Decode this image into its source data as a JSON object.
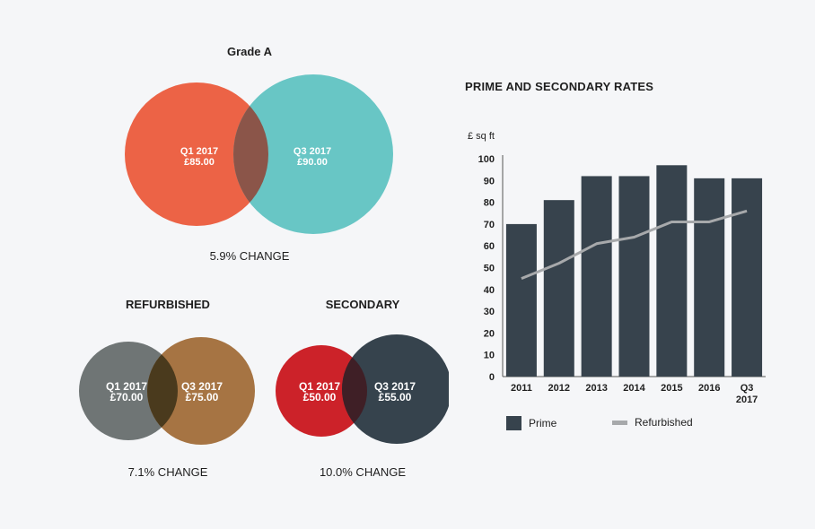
{
  "venns": [
    {
      "title": "Grade A",
      "left": {
        "period": "Q1 2017",
        "value": "£85.00",
        "color": "#ec6346"
      },
      "right": {
        "period": "Q3 2017",
        "value": "£90.00",
        "color": "#68c6c5"
      },
      "overlap_color": "#8b5549",
      "change": "5.9% CHANGE"
    },
    {
      "title": "REFURBISHED",
      "left": {
        "period": "Q1 2017",
        "value": "£70.00",
        "color": "#6f7575"
      },
      "right": {
        "period": "Q3 2017",
        "value": "£75.00",
        "color": "#a67443"
      },
      "overlap_color": "#4a3a1d",
      "change": "7.1% CHANGE"
    },
    {
      "title": "SECONDARY",
      "left": {
        "period": "Q1 2017",
        "value": "£50.00",
        "color": "#cc2229"
      },
      "right": {
        "period": "Q3 2017",
        "value": "£55.00",
        "color": "#36434d"
      },
      "overlap_color": "#3f1f26",
      "change": "10.0% CHANGE"
    }
  ],
  "chart_data": {
    "type": "bar",
    "title": "PRIME AND SECONDARY RATES",
    "ylabel": "£ sq ft",
    "ylim": [
      0,
      100
    ],
    "yticks": [
      0,
      10,
      20,
      30,
      40,
      50,
      60,
      70,
      80,
      90,
      100
    ],
    "categories": [
      "2011",
      "2012",
      "2013",
      "2014",
      "2015",
      "2016",
      "Q3 2017"
    ],
    "series": [
      {
        "name": "Prime",
        "type": "bar",
        "color": "#37434d",
        "values": [
          70,
          81,
          92,
          92,
          97,
          91,
          91
        ]
      },
      {
        "name": "Refurbished",
        "type": "line",
        "color": "#a7a9ab",
        "values": [
          45,
          52,
          61,
          64,
          71,
          71,
          76
        ]
      }
    ],
    "legend": "bottom-left"
  }
}
